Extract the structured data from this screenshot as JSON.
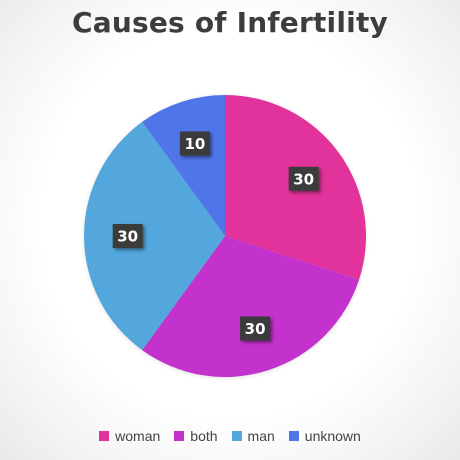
{
  "chart_data": {
    "type": "pie",
    "title": "Causes of Infertility",
    "categories": [
      "woman",
      "both",
      "man",
      "unknown"
    ],
    "values": [
      30,
      30,
      30,
      10
    ],
    "colors": [
      "#e2319b",
      "#c331cc",
      "#52a7dc",
      "#4f76e9"
    ],
    "data_labels": [
      "30",
      "30",
      "30",
      "10"
    ],
    "start_angle_deg": 0,
    "direction": "clockwise",
    "legend_position": "bottom"
  }
}
